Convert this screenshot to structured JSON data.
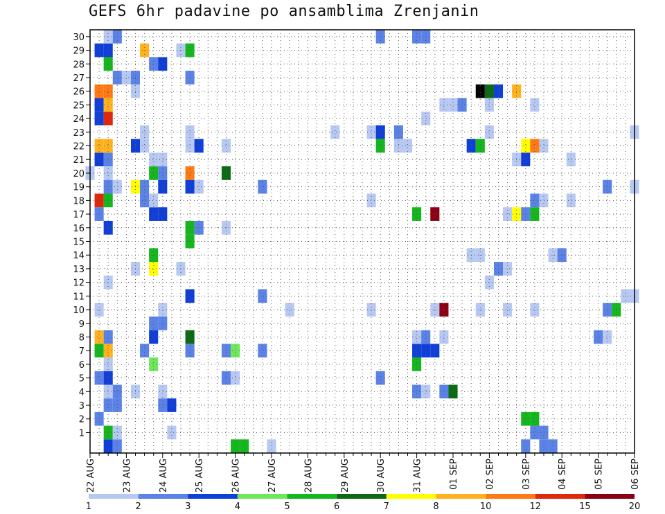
{
  "chart_data": {
    "type": "heatmap",
    "title": "GEFS 6hr padavine po ansamblima Zrenjanin",
    "ylabel": "",
    "xlabel": "",
    "y_ticks": [
      "1",
      "2",
      "3",
      "4",
      "5",
      "6",
      "7",
      "8",
      "9",
      "10",
      "11",
      "12",
      "13",
      "14",
      "15",
      "16",
      "17",
      "18",
      "19",
      "20",
      "21",
      "22",
      "23",
      "24",
      "25",
      "26",
      "27",
      "28",
      "29",
      "30"
    ],
    "x_ticks": [
      "22 AUG",
      "23 AUG",
      "24 AUG",
      "25 AUG",
      "26 AUG",
      "27 AUG",
      "28 AUG",
      "29 AUG",
      "30 AUG",
      "31 AUG",
      "01 SEP",
      "02 SEP",
      "03 SEP",
      "04 SEP",
      "05 SEP",
      "06 SEP"
    ],
    "x_steps_per_day": 4,
    "legend_thresholds": [
      "1",
      "2",
      "3",
      "4",
      "5",
      "6",
      "7",
      "8",
      "10",
      "12",
      "15",
      "20"
    ],
    "levels_colors": [
      "#b7c8f2",
      "#5b82e6",
      "#0f3fd8",
      "#6ee85a",
      "#14b81e",
      "#0c6a14",
      "#ffff00",
      "#ffb21e",
      "#ff7a14",
      "#e0280c",
      "#8c0014"
    ],
    "cells": [
      [
        0,
        2,
        3
      ],
      [
        0,
        3,
        2
      ],
      [
        0,
        16,
        5
      ],
      [
        0,
        17,
        5
      ],
      [
        0,
        20,
        1
      ],
      [
        0,
        48,
        2
      ],
      [
        0,
        50,
        2
      ],
      [
        0,
        51,
        2
      ],
      [
        1,
        2,
        5
      ],
      [
        1,
        3,
        1
      ],
      [
        1,
        9,
        1
      ],
      [
        1,
        49,
        2
      ],
      [
        1,
        50,
        2
      ],
      [
        2,
        1,
        2
      ],
      [
        2,
        48,
        5
      ],
      [
        2,
        49,
        5
      ],
      [
        3,
        2,
        2
      ],
      [
        3,
        3,
        2
      ],
      [
        3,
        8,
        2
      ],
      [
        3,
        9,
        3
      ],
      [
        4,
        2,
        1
      ],
      [
        4,
        3,
        2
      ],
      [
        4,
        5,
        1
      ],
      [
        4,
        8,
        1
      ],
      [
        4,
        36,
        2
      ],
      [
        4,
        37,
        1
      ],
      [
        4,
        39,
        2
      ],
      [
        4,
        40,
        6
      ],
      [
        5,
        1,
        2
      ],
      [
        5,
        2,
        3
      ],
      [
        5,
        15,
        2
      ],
      [
        5,
        16,
        1
      ],
      [
        5,
        32,
        2
      ],
      [
        6,
        2,
        1
      ],
      [
        6,
        7,
        4
      ],
      [
        6,
        36,
        5
      ],
      [
        7,
        1,
        5
      ],
      [
        7,
        2,
        8
      ],
      [
        7,
        6,
        2
      ],
      [
        7,
        11,
        2
      ],
      [
        7,
        15,
        2
      ],
      [
        7,
        16,
        4
      ],
      [
        7,
        19,
        2
      ],
      [
        7,
        36,
        3
      ],
      [
        7,
        37,
        3
      ],
      [
        7,
        38,
        3
      ],
      [
        8,
        1,
        8
      ],
      [
        8,
        2,
        2
      ],
      [
        8,
        7,
        3
      ],
      [
        8,
        11,
        6
      ],
      [
        8,
        36,
        1
      ],
      [
        8,
        37,
        2
      ],
      [
        8,
        39,
        1
      ],
      [
        8,
        56,
        2
      ],
      [
        8,
        57,
        1
      ],
      [
        9,
        7,
        2
      ],
      [
        9,
        8,
        2
      ],
      [
        10,
        1,
        1
      ],
      [
        10,
        8,
        1
      ],
      [
        10,
        22,
        1
      ],
      [
        10,
        31,
        1
      ],
      [
        10,
        38,
        1
      ],
      [
        10,
        39,
        11
      ],
      [
        10,
        43,
        1
      ],
      [
        10,
        46,
        1
      ],
      [
        10,
        49,
        1
      ],
      [
        10,
        57,
        2
      ],
      [
        10,
        58,
        5
      ],
      [
        11,
        11,
        3
      ],
      [
        11,
        19,
        2
      ],
      [
        11,
        59,
        1
      ],
      [
        11,
        60,
        1
      ],
      [
        12,
        2,
        1
      ],
      [
        12,
        44,
        1
      ],
      [
        13,
        5,
        1
      ],
      [
        13,
        7,
        7
      ],
      [
        13,
        10,
        1
      ],
      [
        13,
        45,
        2
      ],
      [
        13,
        46,
        1
      ],
      [
        14,
        7,
        5
      ],
      [
        14,
        42,
        1
      ],
      [
        14,
        43,
        1
      ],
      [
        14,
        51,
        1
      ],
      [
        14,
        52,
        2
      ],
      [
        15,
        11,
        5
      ],
      [
        16,
        2,
        3
      ],
      [
        16,
        11,
        5
      ],
      [
        16,
        12,
        2
      ],
      [
        16,
        15,
        1
      ],
      [
        17,
        1,
        2
      ],
      [
        17,
        7,
        3
      ],
      [
        17,
        8,
        3
      ],
      [
        17,
        36,
        5
      ],
      [
        17,
        38,
        11
      ],
      [
        17,
        46,
        1
      ],
      [
        17,
        47,
        7
      ],
      [
        17,
        48,
        2
      ],
      [
        17,
        49,
        5
      ],
      [
        18,
        1,
        10
      ],
      [
        18,
        2,
        5
      ],
      [
        18,
        6,
        2
      ],
      [
        18,
        7,
        1
      ],
      [
        18,
        31,
        1
      ],
      [
        18,
        49,
        2
      ],
      [
        18,
        50,
        1
      ],
      [
        18,
        53,
        1
      ],
      [
        19,
        2,
        2
      ],
      [
        19,
        3,
        1
      ],
      [
        19,
        5,
        7
      ],
      [
        19,
        6,
        2
      ],
      [
        19,
        8,
        3
      ],
      [
        19,
        11,
        3
      ],
      [
        19,
        12,
        1
      ],
      [
        19,
        19,
        2
      ],
      [
        19,
        57,
        2
      ],
      [
        19,
        60,
        1
      ],
      [
        20,
        0,
        1
      ],
      [
        20,
        2,
        1
      ],
      [
        20,
        7,
        5
      ],
      [
        20,
        8,
        2
      ],
      [
        20,
        11,
        9
      ],
      [
        20,
        15,
        6
      ],
      [
        21,
        1,
        3
      ],
      [
        21,
        2,
        2
      ],
      [
        21,
        7,
        1
      ],
      [
        21,
        8,
        1
      ],
      [
        21,
        47,
        1
      ],
      [
        21,
        48,
        3
      ],
      [
        21,
        53,
        1
      ],
      [
        22,
        1,
        8
      ],
      [
        22,
        2,
        8
      ],
      [
        22,
        5,
        3
      ],
      [
        22,
        6,
        1
      ],
      [
        22,
        11,
        1
      ],
      [
        22,
        12,
        3
      ],
      [
        22,
        15,
        1
      ],
      [
        22,
        32,
        5
      ],
      [
        22,
        34,
        1
      ],
      [
        22,
        35,
        1
      ],
      [
        22,
        42,
        3
      ],
      [
        22,
        43,
        5
      ],
      [
        22,
        48,
        7
      ],
      [
        22,
        49,
        9
      ],
      [
        22,
        50,
        1
      ],
      [
        23,
        6,
        1
      ],
      [
        23,
        11,
        1
      ],
      [
        23,
        27,
        1
      ],
      [
        23,
        31,
        1
      ],
      [
        23,
        32,
        3
      ],
      [
        23,
        34,
        2
      ],
      [
        23,
        44,
        1
      ],
      [
        23,
        60,
        1
      ],
      [
        24,
        1,
        3
      ],
      [
        24,
        2,
        10
      ],
      [
        24,
        37,
        1
      ],
      [
        25,
        1,
        3
      ],
      [
        25,
        2,
        8
      ],
      [
        25,
        39,
        1
      ],
      [
        25,
        40,
        1
      ],
      [
        25,
        41,
        2
      ],
      [
        25,
        44,
        1
      ],
      [
        25,
        49,
        1
      ],
      [
        26,
        1,
        9
      ],
      [
        26,
        2,
        9
      ],
      [
        26,
        5,
        1
      ],
      [
        26,
        43,
        12
      ],
      [
        26,
        44,
        6
      ],
      [
        26,
        45,
        3
      ],
      [
        26,
        47,
        8
      ],
      [
        27,
        3,
        2
      ],
      [
        27,
        4,
        1
      ],
      [
        27,
        5,
        2
      ],
      [
        27,
        11,
        2
      ],
      [
        28,
        2,
        5
      ],
      [
        28,
        7,
        2
      ],
      [
        28,
        8,
        3
      ],
      [
        29,
        1,
        3
      ],
      [
        29,
        2,
        3
      ],
      [
        29,
        6,
        8
      ],
      [
        29,
        10,
        1
      ],
      [
        29,
        11,
        5
      ],
      [
        30,
        2,
        1
      ],
      [
        30,
        3,
        2
      ],
      [
        30,
        32,
        2
      ],
      [
        30,
        36,
        2
      ],
      [
        30,
        37,
        2
      ]
    ]
  }
}
